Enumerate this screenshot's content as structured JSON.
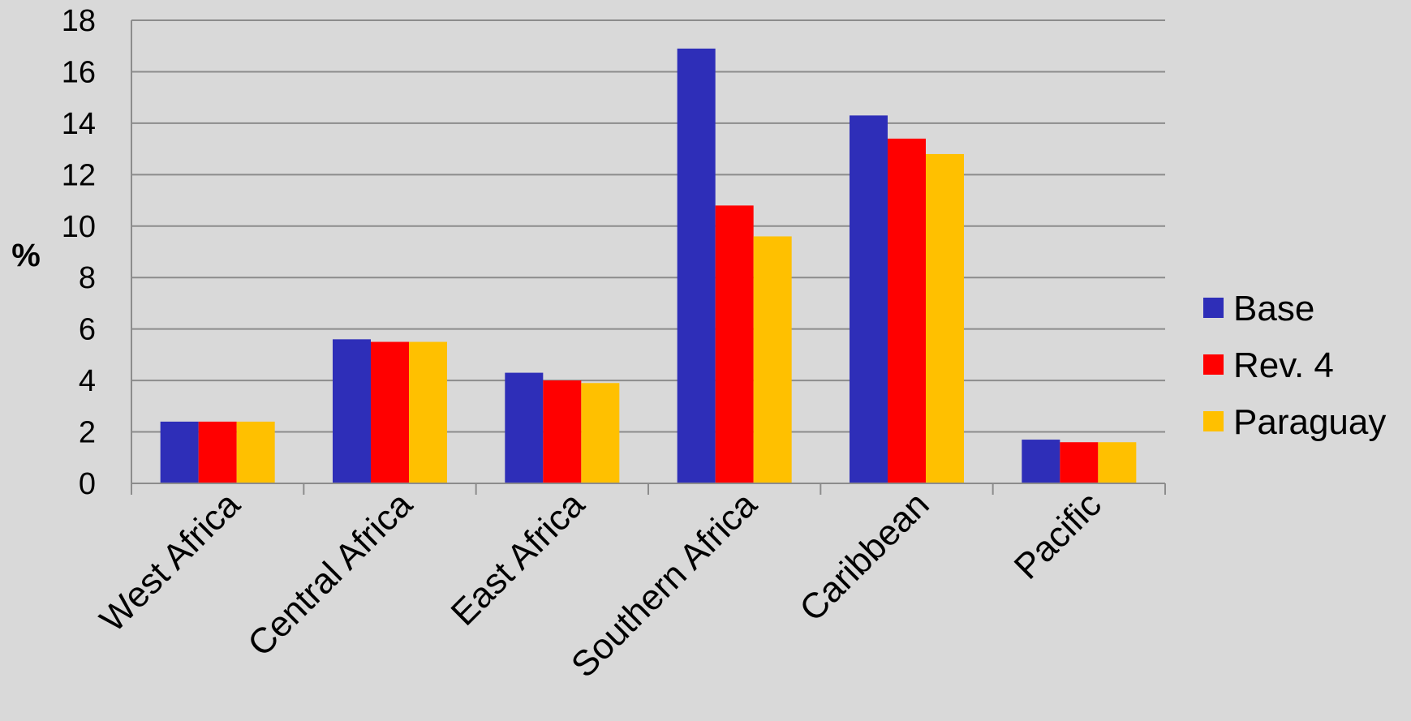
{
  "chart_data": {
    "type": "bar",
    "title": "",
    "xlabel": "",
    "ylabel": "%",
    "ylim": [
      0,
      18
    ],
    "ytick_step": 2,
    "grid": true,
    "legend_position": "right",
    "categories": [
      "West Africa",
      "Central Africa",
      "East Africa",
      "Southern Africa",
      "Caribbean",
      "Pacific"
    ],
    "series": [
      {
        "name": "Base",
        "color": "#2e2eb8",
        "values": [
          2.4,
          5.6,
          4.3,
          16.9,
          14.3,
          1.7
        ]
      },
      {
        "name": "Rev. 4",
        "color": "#ff0000",
        "values": [
          2.4,
          5.5,
          4.0,
          10.8,
          13.4,
          1.6
        ]
      },
      {
        "name": "Paraguay",
        "color": "#ffc000",
        "values": [
          2.4,
          5.5,
          3.9,
          9.6,
          12.8,
          1.6
        ]
      }
    ]
  }
}
